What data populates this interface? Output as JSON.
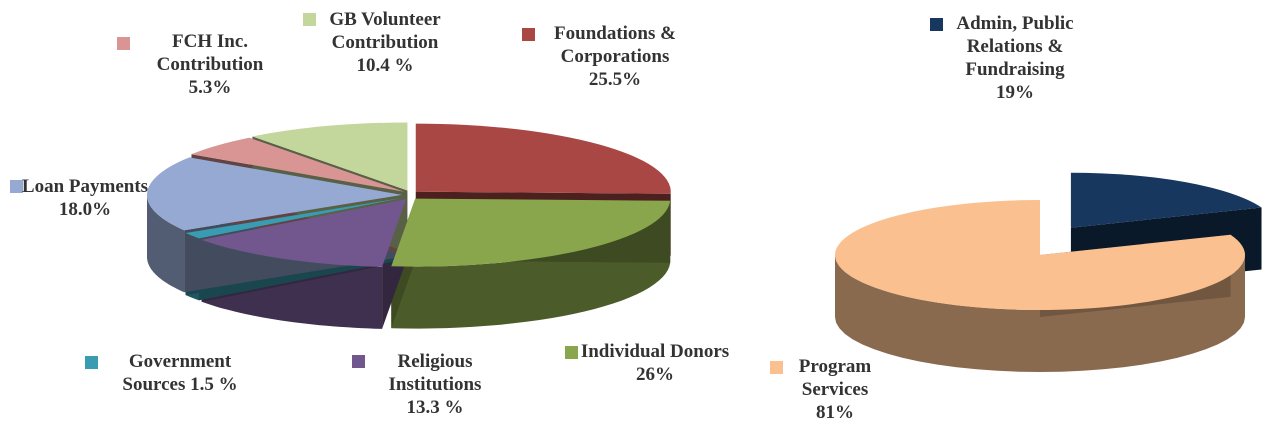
{
  "chart_data": [
    {
      "type": "pie",
      "categories": [
        "Foundations & Corporations",
        "Individual Donors",
        "Religious Institutions",
        "Government Sources",
        "Loan Payments",
        "FCH Inc. Contribution",
        "GB Volunteer Contribution"
      ],
      "values": [
        25.5,
        26,
        13.3,
        1.5,
        18.0,
        5.3,
        10.4
      ],
      "value_labels": [
        "25.5%",
        "26%",
        "13.3 %",
        "1.5 %",
        "18.0%",
        "5.3%",
        "10.4 %"
      ],
      "colors": [
        "#a94744",
        "#8aa64c",
        "#72578f",
        "#3a9cb0",
        "#95a9d3",
        "#d99594",
        "#c3d69b"
      ]
    },
    {
      "type": "pie",
      "categories": [
        "Admin, Public Relations & Fundraising",
        "Program Services"
      ],
      "values": [
        19,
        81
      ],
      "value_labels": [
        "19%",
        "81%"
      ],
      "colors": [
        "#17375e",
        "#fac08f"
      ]
    }
  ]
}
